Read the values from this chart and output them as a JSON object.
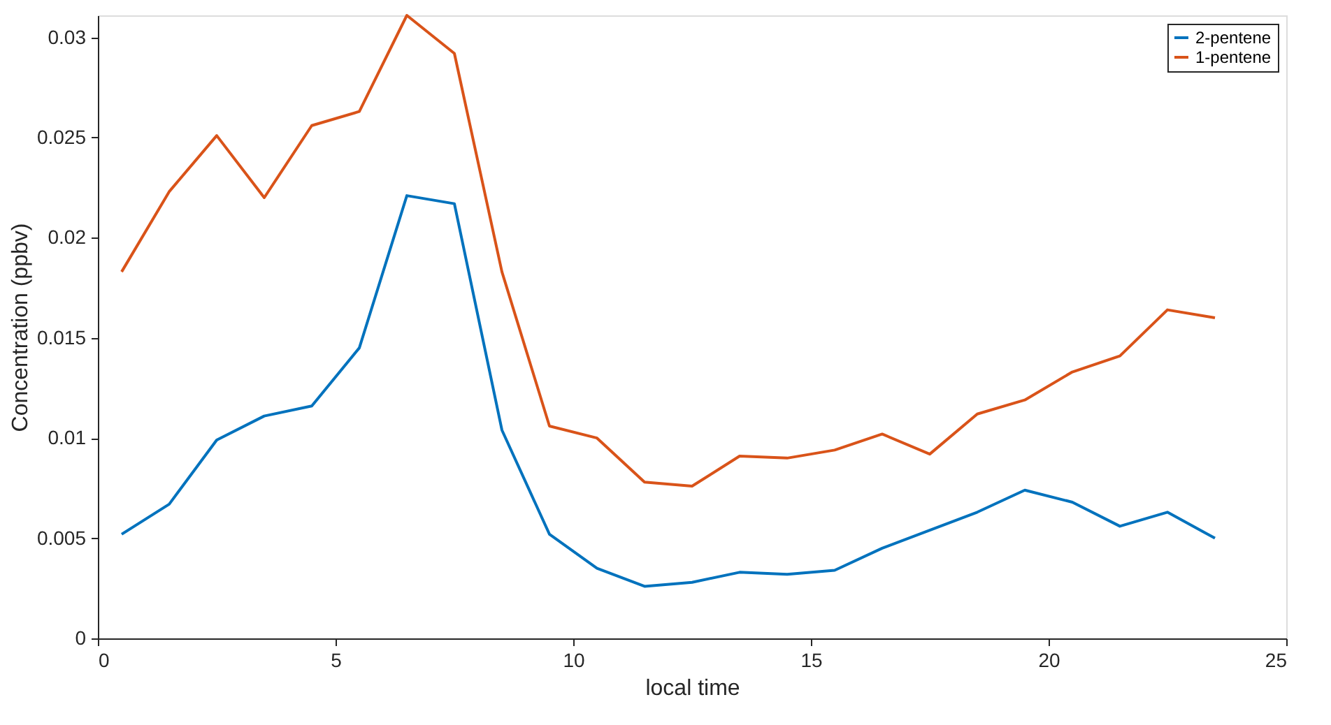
{
  "chart_data": {
    "type": "line",
    "xlabel": "local time",
    "ylabel": "Concentration (ppbv)",
    "x": [
      0.5,
      1.5,
      2.5,
      3.5,
      4.5,
      5.5,
      6.5,
      7.5,
      8.5,
      9.5,
      10.5,
      11.5,
      12.5,
      13.5,
      14.5,
      15.5,
      16.5,
      17.5,
      18.5,
      19.5,
      20.5,
      21.5,
      22.5,
      23.5
    ],
    "series": [
      {
        "name": "2-pentene",
        "color": "#0072bd",
        "values": [
          0.0052,
          0.0067,
          0.0099,
          0.0111,
          0.0116,
          0.0145,
          0.0221,
          0.0217,
          0.0104,
          0.0052,
          0.0035,
          0.0026,
          0.0028,
          0.0033,
          0.0032,
          0.0034,
          0.0045,
          0.0054,
          0.0063,
          0.0074,
          0.0068,
          0.0056,
          0.0063,
          0.005
        ]
      },
      {
        "name": "1-pentene",
        "color": "#d95319",
        "values": [
          0.0183,
          0.0223,
          0.0251,
          0.022,
          0.0256,
          0.0263,
          0.0311,
          0.0292,
          0.0183,
          0.0106,
          0.01,
          0.0078,
          0.0076,
          0.0091,
          0.009,
          0.0094,
          0.0102,
          0.0092,
          0.0112,
          0.0119,
          0.0133,
          0.0141,
          0.0164,
          0.016
        ]
      }
    ],
    "xlim": [
      0,
      25
    ],
    "xticks": [
      0,
      5,
      10,
      15,
      20,
      25
    ],
    "ylim": [
      0,
      0.0311
    ],
    "yticks": [
      0,
      0.005,
      0.01,
      0.015,
      0.02,
      0.025,
      0.03
    ],
    "grid": false,
    "legend": "top right",
    "marker": "none",
    "line_style": "solid"
  }
}
